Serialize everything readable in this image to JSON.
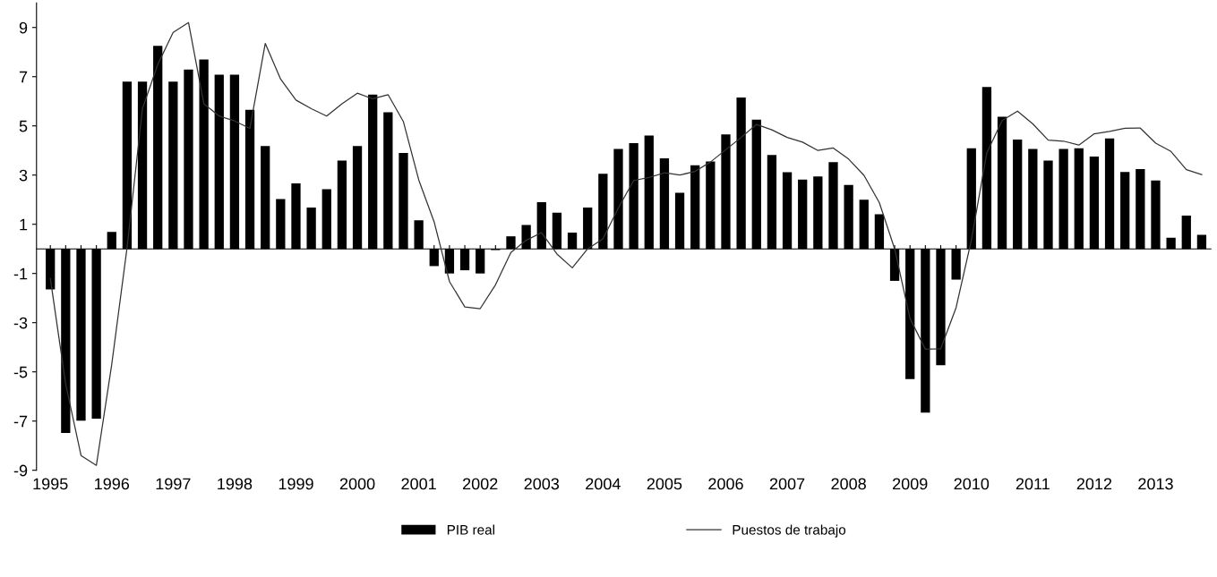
{
  "chart_data": {
    "type": "bar",
    "categories": [
      "1995",
      null,
      null,
      null,
      "1996",
      null,
      null,
      null,
      "1997",
      null,
      null,
      null,
      "1998",
      null,
      null,
      null,
      "1999",
      null,
      null,
      null,
      "2000",
      null,
      null,
      null,
      "2001",
      null,
      null,
      null,
      "2002",
      null,
      null,
      null,
      "2003",
      null,
      null,
      null,
      "2004",
      null,
      null,
      null,
      "2005",
      null,
      null,
      null,
      "2006",
      null,
      null,
      null,
      "2007",
      null,
      null,
      null,
      "2008",
      null,
      null,
      null,
      "2009",
      null,
      null,
      null,
      "2010",
      null,
      null,
      null,
      "2011",
      null,
      null,
      null,
      "2012",
      null,
      null,
      null,
      "2013",
      null,
      null,
      null
    ],
    "series": [
      {
        "name": "PIB real",
        "color": "#000000",
        "values": [
          -1.65,
          -7.48,
          -6.98,
          -6.9,
          0.69,
          6.8,
          6.8,
          8.25,
          6.8,
          7.29,
          7.7,
          7.08,
          7.08,
          5.65,
          4.18,
          2.03,
          2.66,
          1.68,
          2.43,
          3.59,
          4.18,
          6.27,
          5.55,
          3.9,
          1.16,
          -0.7,
          -1.0,
          -0.87,
          -1.0,
          -0.05,
          0.51,
          0.97,
          1.9,
          1.47,
          0.66,
          1.68,
          3.05,
          4.06,
          4.3,
          4.61,
          3.68,
          2.28,
          3.4,
          3.55,
          4.65,
          6.15,
          5.25,
          3.82,
          3.12,
          2.82,
          2.94,
          3.53,
          2.6,
          2.0,
          1.41,
          -1.3,
          -5.29,
          -6.66,
          -4.73,
          -1.25,
          4.09,
          6.58,
          5.37,
          4.44,
          4.06,
          3.59,
          4.06,
          4.09,
          3.75,
          4.49,
          3.13,
          3.24,
          2.78,
          0.45,
          1.35,
          0.57
        ]
      },
      {
        "name": "Puestos de trabajo",
        "type": "line",
        "color": "#333333",
        "line_style": "solid",
        "values": [
          -1.2,
          -5.5,
          -8.4,
          -8.8,
          -4.7,
          0.06,
          5.7,
          7.5,
          8.8,
          9.2,
          5.9,
          5.4,
          5.2,
          4.9,
          8.35,
          6.9,
          6.05,
          5.7,
          5.4,
          5.9,
          6.33,
          6.1,
          6.27,
          5.17,
          2.8,
          1.1,
          -1.33,
          -2.36,
          -2.43,
          -1.46,
          -0.15,
          0.35,
          0.66,
          -0.21,
          -0.77,
          0.0,
          0.41,
          1.66,
          2.78,
          2.9,
          3.09,
          3.0,
          3.15,
          3.53,
          4.03,
          4.53,
          5.06,
          4.84,
          4.53,
          4.34,
          4.0,
          4.1,
          3.65,
          2.99,
          1.88,
          0.0,
          -2.83,
          -4.08,
          -4.06,
          -2.39,
          0.37,
          3.9,
          5.22,
          5.6,
          5.08,
          4.42,
          4.38,
          4.22,
          4.68,
          4.78,
          4.9,
          4.91,
          4.3,
          3.96,
          3.22,
          3.02
        ]
      }
    ],
    "ylim": [
      -9,
      10
    ],
    "yticks": [
      -9,
      -7,
      -5,
      -3,
      -1,
      1,
      3,
      5,
      7,
      9
    ],
    "grid": false,
    "legend": "bottom",
    "marker": "none"
  }
}
